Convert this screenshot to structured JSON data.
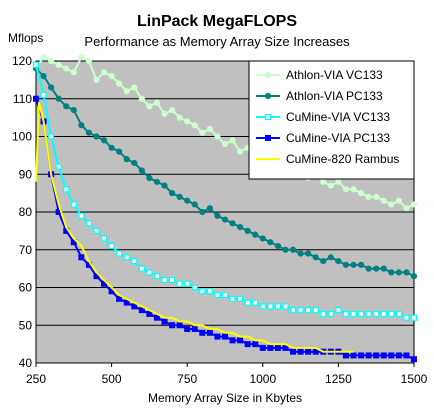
{
  "chart_data": {
    "type": "line",
    "title": "LinPack MegaFLOPS",
    "subtitle": "Performance as Memory Array Size Increases",
    "ylabel": "Mflops",
    "xlabel": "Memory Array Size in Kbytes",
    "xlim": [
      250,
      1500
    ],
    "ylim": [
      40,
      120
    ],
    "x_ticks": [
      250,
      500,
      750,
      1000,
      1250,
      1500
    ],
    "y_ticks": [
      40,
      50,
      60,
      70,
      80,
      90,
      100,
      110,
      120
    ],
    "x_tick_labels": [
      "250",
      "500",
      "750",
      "1000",
      "1250",
      "1500"
    ],
    "y_tick_labels": [
      "40",
      "50",
      "60",
      "70",
      "80",
      "90",
      "100",
      "110",
      "120"
    ],
    "plot_background": "#c0c0c0",
    "grid": "horizontal",
    "legend_position": "top-right",
    "series": [
      {
        "name": "Athlon-VIA VC133",
        "color": "#ccffcc",
        "marker": "circle",
        "x": [
          250,
          275,
          300,
          325,
          350,
          375,
          400,
          425,
          450,
          475,
          500,
          525,
          550,
          575,
          600,
          625,
          650,
          675,
          700,
          725,
          750,
          775,
          800,
          825,
          850,
          875,
          900,
          925,
          950,
          975,
          1000,
          1025,
          1050,
          1075,
          1100,
          1125,
          1150,
          1175,
          1200,
          1225,
          1250,
          1275,
          1300,
          1325,
          1350,
          1375,
          1400,
          1425,
          1450,
          1475,
          1500
        ],
        "y": [
          118,
          121,
          120,
          119,
          118,
          117,
          121,
          120,
          115,
          117,
          116,
          114,
          112,
          113,
          110,
          108,
          109,
          106,
          107,
          105,
          104,
          103,
          101,
          102,
          100,
          98,
          99,
          96,
          97,
          95,
          94,
          93,
          92,
          91,
          90,
          91,
          89,
          90,
          88,
          87,
          88,
          86,
          86,
          85,
          84,
          84,
          83,
          82,
          83,
          81,
          82
        ]
      },
      {
        "name": "Athlon-VIA PC133",
        "color": "#008080",
        "marker": "circle",
        "x": [
          250,
          275,
          300,
          325,
          350,
          375,
          400,
          425,
          450,
          475,
          500,
          525,
          550,
          575,
          600,
          625,
          650,
          675,
          700,
          725,
          750,
          775,
          800,
          825,
          850,
          875,
          900,
          925,
          950,
          975,
          1000,
          1025,
          1050,
          1075,
          1100,
          1125,
          1150,
          1175,
          1200,
          1225,
          1250,
          1275,
          1300,
          1325,
          1350,
          1375,
          1400,
          1425,
          1450,
          1475,
          1500
        ],
        "y": [
          118,
          116,
          113,
          110,
          108,
          107,
          103,
          101,
          100,
          99,
          97,
          96,
          94,
          93,
          91,
          89,
          88,
          87,
          85,
          84,
          83,
          82,
          80,
          81,
          79,
          78,
          77,
          76,
          75,
          74,
          73,
          72,
          71,
          70,
          70,
          69,
          69,
          68,
          67,
          68,
          67,
          66,
          66,
          66,
          65,
          65,
          65,
          64,
          64,
          64,
          63
        ]
      },
      {
        "name": "CuMine-VIA VC133",
        "color": "#00ffff",
        "marker": "square-open",
        "x": [
          250,
          275,
          300,
          325,
          350,
          375,
          400,
          425,
          450,
          475,
          500,
          525,
          550,
          575,
          600,
          625,
          650,
          675,
          700,
          725,
          750,
          775,
          800,
          825,
          850,
          875,
          900,
          925,
          950,
          975,
          1000,
          1025,
          1050,
          1075,
          1100,
          1125,
          1150,
          1175,
          1200,
          1225,
          1250,
          1275,
          1300,
          1325,
          1350,
          1375,
          1400,
          1425,
          1450,
          1475,
          1500
        ],
        "y": [
          119,
          111,
          100,
          92,
          86,
          82,
          79,
          77,
          75,
          73,
          71,
          69,
          68,
          67,
          65,
          64,
          63,
          62,
          62,
          61,
          61,
          60,
          59,
          59,
          58,
          58,
          57,
          57,
          56,
          56,
          55,
          55,
          55,
          55,
          54,
          54,
          54,
          54,
          53,
          53,
          54,
          53,
          53,
          53,
          53,
          53,
          53,
          53,
          53,
          52,
          52
        ]
      },
      {
        "name": "CuMine-VIA PC133",
        "color": "#0000ff",
        "marker": "square",
        "x": [
          250,
          275,
          300,
          325,
          350,
          375,
          400,
          425,
          450,
          475,
          500,
          525,
          550,
          575,
          600,
          625,
          650,
          675,
          700,
          725,
          750,
          775,
          800,
          825,
          850,
          875,
          900,
          925,
          950,
          975,
          1000,
          1025,
          1050,
          1075,
          1100,
          1125,
          1150,
          1175,
          1200,
          1225,
          1250,
          1275,
          1300,
          1325,
          1350,
          1375,
          1400,
          1425,
          1450,
          1475,
          1500
        ],
        "y": [
          110,
          104,
          90,
          80,
          75,
          72,
          68,
          66,
          63,
          61,
          59,
          57,
          56,
          55,
          54,
          53,
          52,
          51,
          50,
          50,
          49,
          49,
          48,
          48,
          47,
          47,
          46,
          46,
          45,
          45,
          44,
          44,
          44,
          44,
          43,
          43,
          43,
          43,
          43,
          43,
          43,
          42,
          42,
          42,
          42,
          42,
          42,
          42,
          42,
          42,
          41
        ]
      },
      {
        "name": "CuMine-820 Rambus",
        "color": "#ffff00",
        "marker": "none",
        "x": [
          250,
          260,
          275,
          300,
          325,
          350,
          375,
          400,
          425,
          450,
          475,
          500,
          525,
          550,
          575,
          600,
          625,
          650,
          675,
          700,
          725,
          750,
          775,
          800,
          825,
          850,
          875,
          900,
          925,
          950,
          975,
          1000,
          1025,
          1050,
          1075,
          1100,
          1125,
          1150,
          1175,
          1200,
          1225,
          1250,
          1275,
          1300
        ],
        "y": [
          88,
          109,
          104,
          90,
          82,
          76,
          73,
          71,
          67,
          64,
          62,
          60,
          58,
          57,
          56,
          55,
          54,
          53,
          52,
          52,
          51,
          51,
          50,
          50,
          49,
          49,
          48,
          48,
          47,
          47,
          46,
          46,
          45,
          45,
          45,
          44,
          44,
          44,
          44,
          43,
          43,
          43,
          43,
          43
        ]
      }
    ]
  }
}
